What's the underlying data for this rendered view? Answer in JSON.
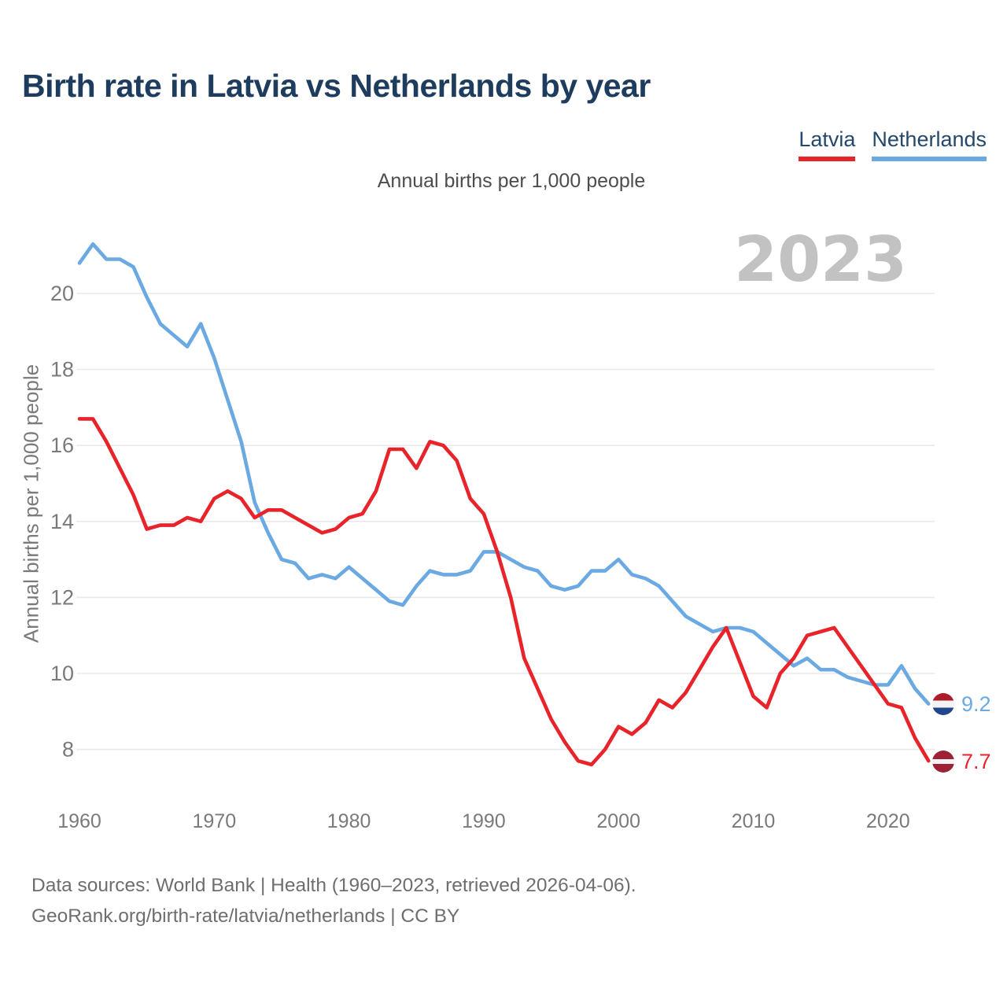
{
  "header": {
    "title": "Birth rate in Latvia vs Netherlands by year"
  },
  "chart": {
    "subtitle": "Annual births per 1,000 people",
    "y_axis_title": "Annual births per 1,000 people",
    "watermark": "2023"
  },
  "chart_data": {
    "type": "line",
    "title": "Birth rate in Latvia vs Netherlands by year",
    "subtitle": "Annual births per 1,000 people",
    "ylabel": "Annual births per 1,000 people",
    "grid": true,
    "legend_position": "top-right",
    "ylim": [
      7.2,
      21.6
    ],
    "y_ticks": [
      8,
      10,
      12,
      14,
      16,
      18,
      20
    ],
    "x_ticks": [
      1960,
      1970,
      1980,
      1990,
      2000,
      2010,
      2020
    ],
    "x": [
      1960,
      1961,
      1962,
      1963,
      1964,
      1965,
      1966,
      1967,
      1968,
      1969,
      1970,
      1971,
      1972,
      1973,
      1974,
      1975,
      1976,
      1977,
      1978,
      1979,
      1980,
      1981,
      1982,
      1983,
      1984,
      1985,
      1986,
      1987,
      1988,
      1989,
      1990,
      1991,
      1992,
      1993,
      1994,
      1995,
      1996,
      1997,
      1998,
      1999,
      2000,
      2001,
      2002,
      2003,
      2004,
      2005,
      2006,
      2007,
      2008,
      2009,
      2010,
      2011,
      2012,
      2013,
      2014,
      2015,
      2016,
      2017,
      2018,
      2019,
      2020,
      2021,
      2022,
      2023
    ],
    "series": [
      {
        "name": "Latvia",
        "color": "#e8232a",
        "end_label": "7.7",
        "flag_colors": [
          "#9d2235",
          "#f3f3f3",
          "#9d2235"
        ],
        "flag_stops": [
          40,
          60
        ],
        "values": [
          16.7,
          16.7,
          16.1,
          15.4,
          14.7,
          13.8,
          13.9,
          13.9,
          14.1,
          14.0,
          14.6,
          14.8,
          14.6,
          14.1,
          14.3,
          14.3,
          14.1,
          13.9,
          13.7,
          13.8,
          14.1,
          14.2,
          14.8,
          15.9,
          15.9,
          15.4,
          16.1,
          16.0,
          15.6,
          14.6,
          14.2,
          13.2,
          12.0,
          10.4,
          9.6,
          8.8,
          8.2,
          7.7,
          7.6,
          8.0,
          8.6,
          8.4,
          8.7,
          9.3,
          9.1,
          9.5,
          10.1,
          10.7,
          11.2,
          10.3,
          9.4,
          9.1,
          10.0,
          10.4,
          11.0,
          11.1,
          11.2,
          10.7,
          10.2,
          9.7,
          9.2,
          9.1,
          8.3,
          7.7
        ]
      },
      {
        "name": "Netherlands",
        "color": "#6aa9e2",
        "end_label": "9.2",
        "flag_colors": [
          "#ae1c28",
          "#f3f3f3",
          "#21468b"
        ],
        "flag_stops": [
          33.5,
          66.5
        ],
        "values": [
          20.8,
          21.3,
          20.9,
          20.9,
          20.7,
          19.9,
          19.2,
          18.9,
          18.6,
          19.2,
          18.3,
          17.2,
          16.1,
          14.5,
          13.7,
          13.0,
          12.9,
          12.5,
          12.6,
          12.5,
          12.8,
          12.5,
          12.2,
          11.9,
          11.8,
          12.3,
          12.7,
          12.6,
          12.6,
          12.7,
          13.2,
          13.2,
          13.0,
          12.8,
          12.7,
          12.3,
          12.2,
          12.3,
          12.7,
          12.7,
          13.0,
          12.6,
          12.5,
          12.3,
          11.9,
          11.5,
          11.3,
          11.1,
          11.2,
          11.2,
          11.1,
          10.8,
          10.5,
          10.2,
          10.4,
          10.1,
          10.1,
          9.9,
          9.8,
          9.7,
          9.7,
          10.2,
          9.6,
          9.2
        ]
      }
    ]
  },
  "footer": {
    "line1": "Data sources: World Bank | Health (1960–2023, retrieved 2026-04-06).",
    "line2": "GeoRank.org/birth-rate/latvia/netherlands | CC BY"
  }
}
